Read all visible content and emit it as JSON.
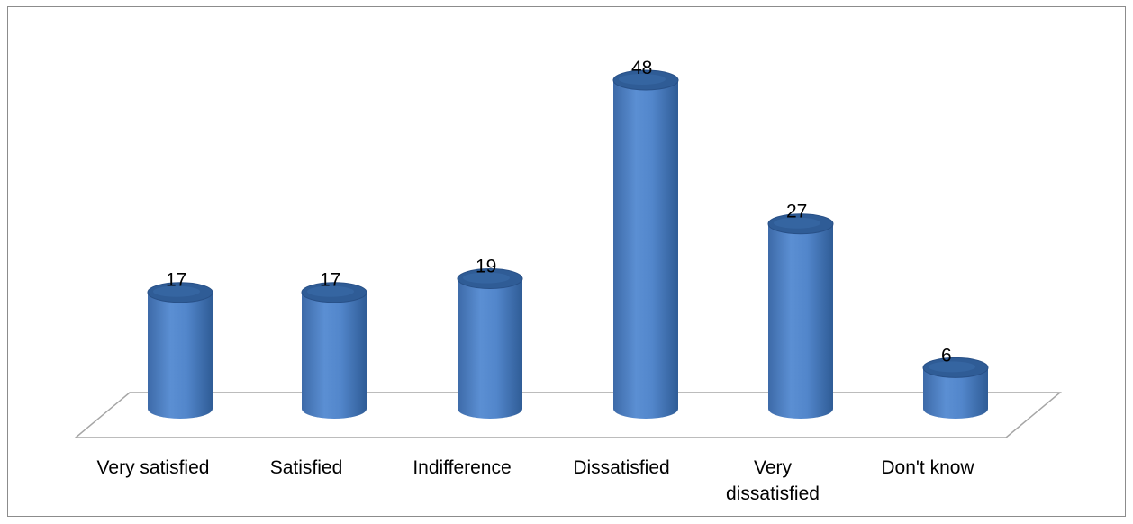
{
  "colors": {
    "bar_main": "#4f81bd",
    "bar_dark": "#2f5c96",
    "bar_light": "#7aa3d9",
    "floor_stroke": "#a6a6a6",
    "frame_border": "#8c8c8c"
  },
  "chart_data": {
    "type": "bar",
    "style": "3d-cylinder",
    "title": "",
    "xlabel": "",
    "ylabel": "",
    "grid": false,
    "legend": "none",
    "ylim": [
      0,
      48
    ],
    "categories": [
      "Very satisfied",
      "Satisfied",
      "Indifference",
      "Dissatisfied",
      "Very\ndissatisfied",
      "Don't know"
    ],
    "values": [
      17,
      17,
      19,
      48,
      27,
      6
    ],
    "data_labels": [
      "17",
      "17",
      "19",
      "48",
      "27",
      "6"
    ]
  }
}
